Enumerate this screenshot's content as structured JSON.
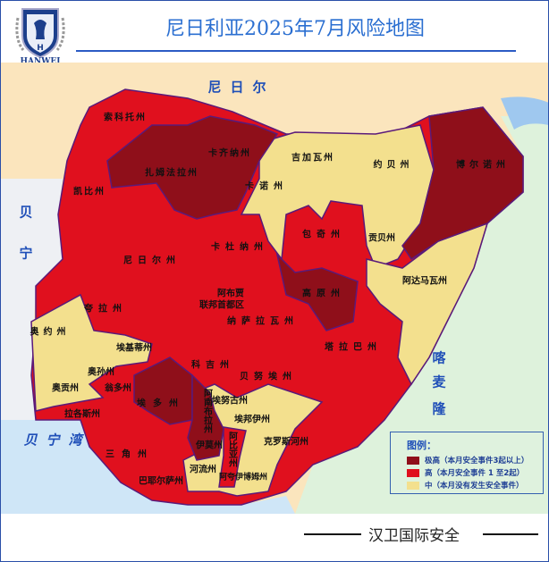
{
  "header": {
    "title": "尼日利亚2025年7月风险地图",
    "logo_text": "HANWEI"
  },
  "colors": {
    "extreme": "#8f0f1a",
    "high": "#e0101e",
    "medium": "#f3e08e",
    "border": "#5a1a7a",
    "title": "#2b6fd1"
  },
  "map": {
    "countries": {
      "niger": "尼日尔",
      "benin_1": "贝",
      "benin_2": "宁",
      "cameroon_1": "喀",
      "cameroon_2": "麦",
      "cameroon_3": "隆",
      "gulf": "贝宁湾"
    },
    "states": [
      {
        "name": "索科托州",
        "risk": "high"
      },
      {
        "name": "扎姆法拉州",
        "risk": "extreme"
      },
      {
        "name": "卡齐纳州",
        "risk": "extreme"
      },
      {
        "name": "卡诺州",
        "risk": "medium"
      },
      {
        "name": "吉加瓦州",
        "risk": "medium"
      },
      {
        "name": "约贝州",
        "risk": "medium"
      },
      {
        "name": "博尔诺州",
        "risk": "extreme"
      },
      {
        "name": "凯比州",
        "risk": "high"
      },
      {
        "name": "尼日尔州",
        "risk": "high"
      },
      {
        "name": "卡杜纳州",
        "risk": "high"
      },
      {
        "name": "包奇州",
        "risk": "high"
      },
      {
        "name": "贡贝州",
        "risk": "medium"
      },
      {
        "name": "阿达马瓦州",
        "risk": "medium"
      },
      {
        "name": "高原州",
        "risk": "extreme"
      },
      {
        "name": "阿布贾",
        "risk": "high"
      },
      {
        "name": "联邦首都区",
        "risk": "high"
      },
      {
        "name": "纳萨拉瓦州",
        "risk": "high"
      },
      {
        "name": "塔拉巴州",
        "risk": "high"
      },
      {
        "name": "夸拉州",
        "risk": "high"
      },
      {
        "name": "奥约州",
        "risk": "medium"
      },
      {
        "name": "埃基蒂州",
        "risk": "medium"
      },
      {
        "name": "奥孙州",
        "risk": "medium"
      },
      {
        "name": "奥贡州",
        "risk": "medium"
      },
      {
        "name": "拉各斯州",
        "risk": "high"
      },
      {
        "name": "翁多州",
        "risk": "high"
      },
      {
        "name": "科吉州",
        "risk": "high"
      },
      {
        "name": "贝努埃州",
        "risk": "high"
      },
      {
        "name": "埃多州",
        "risk": "extreme"
      },
      {
        "name": "阿南布拉州",
        "risk": "extreme"
      },
      {
        "name": "埃努古州",
        "risk": "medium"
      },
      {
        "name": "埃邦伊州",
        "risk": "medium"
      },
      {
        "name": "伊莫州",
        "risk": "extreme"
      },
      {
        "name": "阿比亚州",
        "risk": "high"
      },
      {
        "name": "克罗斯河州",
        "risk": "medium"
      },
      {
        "name": "三角州",
        "risk": "high"
      },
      {
        "name": "河流州",
        "risk": "medium"
      },
      {
        "name": "阿夸伊博姆州",
        "risk": "medium"
      },
      {
        "name": "巴耶尔萨州",
        "risk": "high"
      }
    ]
  },
  "legend": {
    "title": "图例：",
    "items": [
      {
        "label": "极高（本月安全事件3起以上）",
        "color": "#8f0f1a"
      },
      {
        "label": "高（本月安全事件 1 至2起）",
        "color": "#e0101e"
      },
      {
        "label": "中（本月没有发生安全事件）",
        "color": "#f3e08e"
      }
    ]
  },
  "footer": {
    "brand": "汉卫国际安全"
  }
}
